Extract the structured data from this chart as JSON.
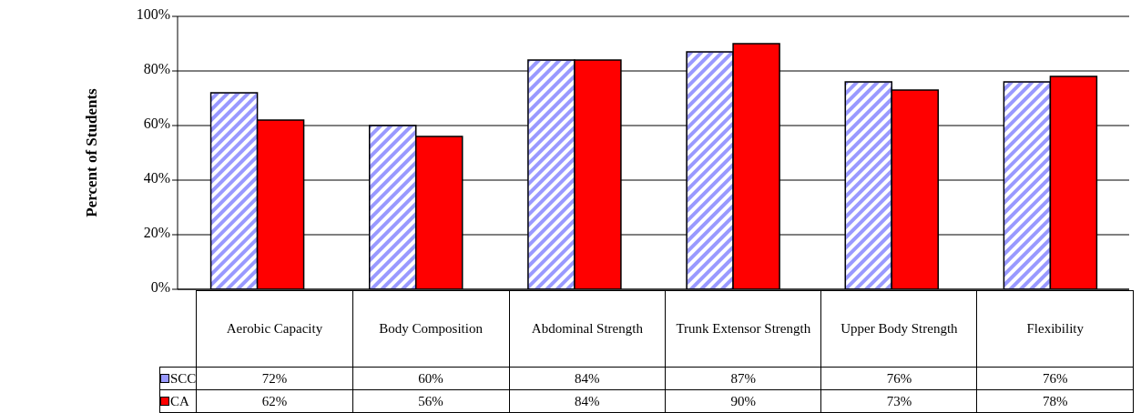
{
  "chart_data": {
    "type": "bar",
    "ylabel": "Percent of Students",
    "categories": [
      "Aerobic Capacity",
      "Body Composition",
      "Abdominal Strength",
      "Trunk Extensor Strength",
      "Upper Body Strength",
      "Flexibility"
    ],
    "series": [
      {
        "name": "SCC",
        "color": "#9999ff",
        "values": [
          72,
          60,
          84,
          87,
          76,
          76
        ],
        "value_labels": [
          "72%",
          "60%",
          "84%",
          "87%",
          "76%",
          "76%"
        ]
      },
      {
        "name": "CA",
        "color": "#ff0000",
        "values": [
          62,
          56,
          84,
          90,
          73,
          78
        ],
        "value_labels": [
          "62%",
          "56%",
          "84%",
          "90%",
          "73%",
          "78%"
        ]
      }
    ],
    "ylim": [
      0,
      100
    ],
    "yticks": [
      {
        "value": 0,
        "label": "0%"
      },
      {
        "value": 20,
        "label": "20%"
      },
      {
        "value": 40,
        "label": "40%"
      },
      {
        "value": 60,
        "label": "60%"
      },
      {
        "value": 80,
        "label": "80%"
      },
      {
        "value": 100,
        "label": "100%"
      }
    ],
    "grid": "y",
    "legend": "bottom left"
  }
}
